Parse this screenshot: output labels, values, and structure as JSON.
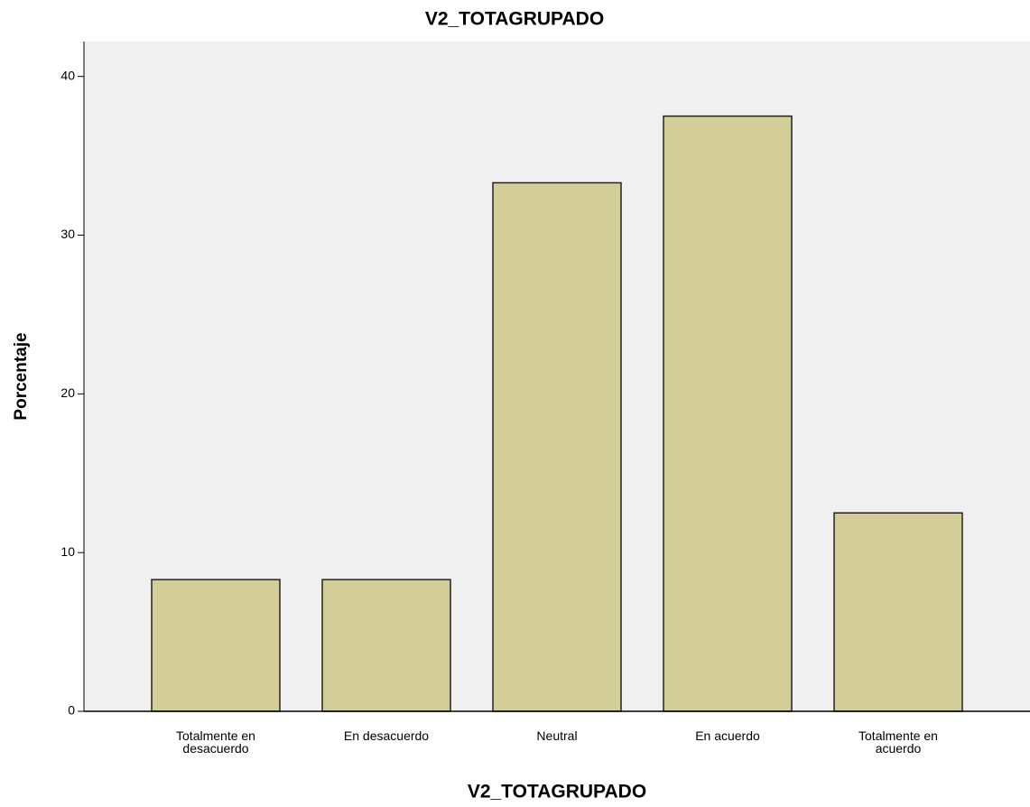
{
  "chart_data": {
    "type": "bar",
    "title": "V2_TOTAGRUPADO",
    "x_label": "V2_TOTAGRUPADO",
    "y_label": "Porcentaje",
    "categories": [
      "Totalmente en desacuerdo",
      "En desacuerdo",
      "Neutral",
      "En acuerdo",
      "Totalmente en acuerdo"
    ],
    "values": [
      8.3,
      8.3,
      33.3,
      37.5,
      12.5
    ],
    "color": "#d3ce97",
    "ylim": [
      0,
      42.2
    ],
    "yticks": [
      0,
      10,
      20,
      30,
      40
    ],
    "grid": false
  }
}
